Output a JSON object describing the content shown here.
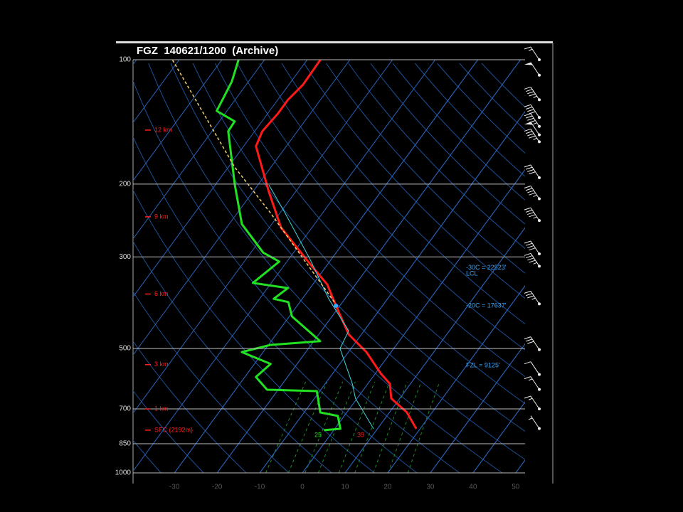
{
  "chart_data": {
    "type": "skewt",
    "title": "FGZ  140621/1200  (Archive)",
    "ylog": true,
    "ylim": [
      1000,
      100
    ],
    "yticks": [
      100,
      200,
      300,
      500,
      700,
      850,
      1000
    ],
    "xlim": [
      -39.7,
      52.2
    ],
    "xticks": [
      -30,
      -20,
      -10,
      0,
      10,
      20,
      30,
      40,
      50
    ],
    "series": [
      {
        "color": "#ff1a1a",
        "width": 3,
        "pressure": [
          782,
          714,
          660,
          609,
          574,
          510,
          462,
          394,
          350,
          311,
          255,
          209,
          186,
          162,
          149,
          135,
          125,
          115,
          100
        ],
        "values": [
          19.1,
          14.1,
          8.0,
          5.2,
          1.2,
          -5.8,
          -13.0,
          -20.9,
          -26.6,
          -34.4,
          -47.2,
          -56.2,
          -61.2,
          -67.1,
          -68.2,
          -67.6,
          -67.6,
          -66.7,
          -66.9
        ]
      },
      {
        "color": "#22e022",
        "width": 3,
        "pressure": [
          788,
          782,
          728,
          714,
          634,
          629,
          586,
          545,
          510,
          490,
          480,
          418,
          386,
          379,
          357,
          347,
          308,
          293,
          250,
          201,
          149,
          141,
          133,
          113,
          100
        ],
        "values": [
          -2.3,
          1.3,
          -1.5,
          -6.2,
          -10.7,
          -22.6,
          -27.4,
          -26.2,
          -35.0,
          -29.5,
          -18.5,
          -29.4,
          -32.7,
          -36.7,
          -35.2,
          -44.3,
          -41.8,
          -47.1,
          -57.0,
          -65.4,
          -76.2,
          -76.4,
          -82.4,
          -83.9,
          -86.1
        ]
      },
      {
        "color": "#40d8e0",
        "width": 1,
        "pressure": [
          782,
          660,
          609,
          500,
          453,
          379,
          304,
          235,
          201
        ],
        "values": [
          9.1,
          -0.4,
          -3.6,
          -12.6,
          -13.6,
          -23.8,
          -35.0,
          -48.8,
          -57.4
        ]
      },
      {
        "color": "#f0d070",
        "width": 1.5,
        "dash": true,
        "pressure": [
          386,
          235,
          182,
          100
        ],
        "values": [
          -21.9,
          -52.2,
          -68.5,
          -101.6
        ]
      }
    ],
    "height_labels": [
      {
        "label": "12 km",
        "pressure": 148
      },
      {
        "label": "9 km",
        "pressure": 240
      },
      {
        "label": "6 km",
        "pressure": 369
      },
      {
        "label": "3 km",
        "pressure": 547
      },
      {
        "label": "1 km",
        "pressure": 700
      },
      {
        "label": "SFC (2192m)",
        "pressure": 788
      }
    ],
    "annotations": [
      {
        "text": "-30C = 22523'",
        "pressure": 319
      },
      {
        "text": "LCL",
        "pressure": 330
      },
      {
        "text": "-20C = 17637'",
        "pressure": 394
      },
      {
        "text": "FZL = 9125'",
        "pressure": 550
      }
    ],
    "surface_dewpoint_label": 25,
    "surface_temp_label": 39,
    "wind": {
      "pressure": [
        100,
        109,
        125,
        138,
        145,
        152,
        158,
        193,
        217,
        245,
        295,
        316,
        390,
        503,
        578,
        628,
        700,
        781
      ],
      "speed": [
        15,
        50,
        45,
        40,
        45,
        50,
        45,
        40,
        45,
        45,
        40,
        45,
        35,
        30,
        10,
        15,
        15,
        5
      ]
    }
  }
}
